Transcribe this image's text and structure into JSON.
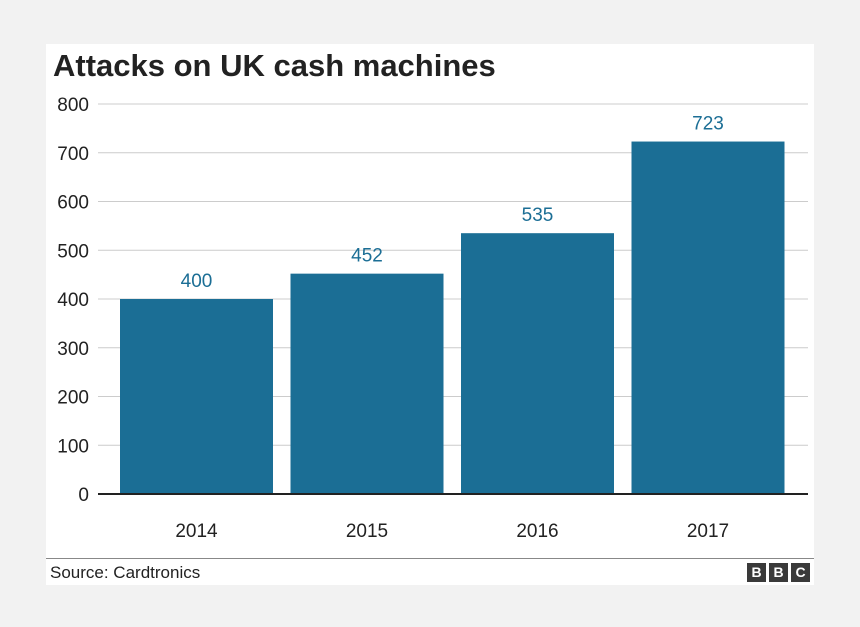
{
  "chart_data": {
    "type": "bar",
    "title": "Attacks on UK cash machines",
    "categories": [
      "2014",
      "2015",
      "2016",
      "2017"
    ],
    "values": [
      400,
      452,
      535,
      723
    ],
    "data_labels": [
      "400",
      "452",
      "535",
      "723"
    ],
    "ylim": [
      0,
      800
    ],
    "yticks": [
      "0",
      "100",
      "200",
      "300",
      "400",
      "500",
      "600",
      "700",
      "800"
    ],
    "xlabel": "",
    "ylabel": "",
    "grid": true,
    "bar_color": "#1b6e95",
    "label_color": "#1b6e95"
  },
  "footer": {
    "source": "Source: Cardtronics",
    "logo_letters": [
      "B",
      "B",
      "C"
    ]
  }
}
